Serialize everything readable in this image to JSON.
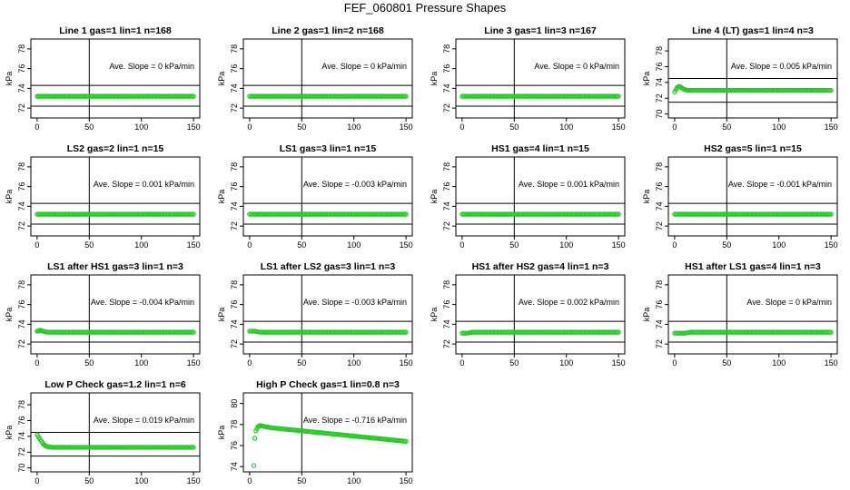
{
  "page": {
    "title": "FEF_060801  Pressure Shapes"
  },
  "style": {
    "point_color": "#22cc22",
    "point_stroke": "#11aa11",
    "axis_color": "#000000"
  },
  "chart_data": [
    {
      "type": "scatter",
      "title": "Line 1 gas=1 lin=1 n=168",
      "ylabel": "kPa",
      "xlim": [
        0,
        150
      ],
      "ylim": [
        71,
        79
      ],
      "x_ticks": [
        0,
        50,
        100,
        150
      ],
      "y_ticks": [
        72,
        74,
        76,
        78
      ],
      "hlines": [
        72.2,
        74.3
      ],
      "vline": 50,
      "slope_text": "Ave. Slope =  0  kPa/min",
      "points": [
        [
          0,
          73.2
        ],
        [
          5,
          73.2
        ],
        [
          10,
          73.2
        ],
        [
          20,
          73.2
        ],
        [
          40,
          73.2
        ],
        [
          60,
          73.2
        ],
        [
          80,
          73.2
        ],
        [
          100,
          73.2
        ],
        [
          120,
          73.2
        ],
        [
          150,
          73.2
        ]
      ]
    },
    {
      "type": "scatter",
      "title": "Line 2 gas=1 lin=2 n=168",
      "ylabel": "kPa",
      "xlim": [
        0,
        150
      ],
      "ylim": [
        71,
        79
      ],
      "x_ticks": [
        0,
        50,
        100,
        150
      ],
      "y_ticks": [
        72,
        74,
        76,
        78
      ],
      "hlines": [
        72.2,
        74.3
      ],
      "vline": 50,
      "slope_text": "Ave. Slope =  0  kPa/min",
      "points": [
        [
          0,
          73.2
        ],
        [
          5,
          73.2
        ],
        [
          10,
          73.2
        ],
        [
          20,
          73.2
        ],
        [
          40,
          73.2
        ],
        [
          60,
          73.2
        ],
        [
          80,
          73.2
        ],
        [
          100,
          73.2
        ],
        [
          120,
          73.2
        ],
        [
          150,
          73.2
        ]
      ]
    },
    {
      "type": "scatter",
      "title": "Line 3 gas=1 lin=3 n=167",
      "ylabel": "kPa",
      "xlim": [
        0,
        150
      ],
      "ylim": [
        71,
        79
      ],
      "x_ticks": [
        0,
        50,
        100,
        150
      ],
      "y_ticks": [
        72,
        74,
        76,
        78
      ],
      "hlines": [
        72.2,
        74.3
      ],
      "vline": 50,
      "slope_text": "Ave. Slope =  0  kPa/min",
      "points": [
        [
          0,
          73.2
        ],
        [
          5,
          73.2
        ],
        [
          10,
          73.2
        ],
        [
          20,
          73.2
        ],
        [
          40,
          73.2
        ],
        [
          60,
          73.2
        ],
        [
          80,
          73.2
        ],
        [
          100,
          73.2
        ],
        [
          120,
          73.2
        ],
        [
          150,
          73.2
        ]
      ]
    },
    {
      "type": "scatter",
      "title": "Line 4 (LT) gas=1 lin=4 n=3",
      "ylabel": "kPa",
      "xlim": [
        0,
        150
      ],
      "ylim": [
        69.5,
        79.5
      ],
      "x_ticks": [
        0,
        50,
        100,
        150
      ],
      "y_ticks": [
        70,
        72,
        74,
        76,
        78
      ],
      "hlines": [
        71.5,
        74.5
      ],
      "vline": 50,
      "slope_text": "Ave. Slope =  0.005  kPa/min",
      "points": [
        [
          0,
          72.8
        ],
        [
          2,
          73.3
        ],
        [
          4,
          73.5
        ],
        [
          6,
          73.4
        ],
        [
          8,
          73.2
        ],
        [
          10,
          73.1
        ],
        [
          12,
          73.0
        ],
        [
          15,
          73.0
        ],
        [
          20,
          73.0
        ],
        [
          40,
          73.0
        ],
        [
          60,
          73.0
        ],
        [
          80,
          73.0
        ],
        [
          100,
          73.0
        ],
        [
          120,
          73.0
        ],
        [
          150,
          73.0
        ]
      ]
    },
    {
      "type": "scatter",
      "title": "LS2 gas=2 lin=1 n=15",
      "ylabel": "kPa",
      "xlim": [
        0,
        150
      ],
      "ylim": [
        71,
        79
      ],
      "x_ticks": [
        0,
        50,
        100,
        150
      ],
      "y_ticks": [
        72,
        74,
        76,
        78
      ],
      "hlines": [
        72.2,
        74.3
      ],
      "vline": 50,
      "slope_text": "Ave. Slope =  0.001  kPa/min",
      "points": [
        [
          0,
          73.2
        ],
        [
          5,
          73.2
        ],
        [
          10,
          73.2
        ],
        [
          20,
          73.2
        ],
        [
          40,
          73.2
        ],
        [
          60,
          73.2
        ],
        [
          80,
          73.2
        ],
        [
          100,
          73.2
        ],
        [
          120,
          73.2
        ],
        [
          150,
          73.2
        ]
      ]
    },
    {
      "type": "scatter",
      "title": "LS1 gas=3 lin=1 n=15",
      "ylabel": "kPa",
      "xlim": [
        0,
        150
      ],
      "ylim": [
        71,
        79
      ],
      "x_ticks": [
        0,
        50,
        100,
        150
      ],
      "y_ticks": [
        72,
        74,
        76,
        78
      ],
      "hlines": [
        72.2,
        74.3
      ],
      "vline": 50,
      "slope_text": "Ave. Slope =  -0.003  kPa/min",
      "points": [
        [
          0,
          73.2
        ],
        [
          5,
          73.2
        ],
        [
          10,
          73.2
        ],
        [
          20,
          73.2
        ],
        [
          40,
          73.2
        ],
        [
          60,
          73.2
        ],
        [
          80,
          73.2
        ],
        [
          100,
          73.2
        ],
        [
          120,
          73.2
        ],
        [
          150,
          73.2
        ]
      ]
    },
    {
      "type": "scatter",
      "title": "HS1 gas=4 lin=1 n=15",
      "ylabel": "kPa",
      "xlim": [
        0,
        150
      ],
      "ylim": [
        71,
        79
      ],
      "x_ticks": [
        0,
        50,
        100,
        150
      ],
      "y_ticks": [
        72,
        74,
        76,
        78
      ],
      "hlines": [
        72.2,
        74.3
      ],
      "vline": 50,
      "slope_text": "Ave. Slope =  0.001  kPa/min",
      "points": [
        [
          0,
          73.2
        ],
        [
          5,
          73.2
        ],
        [
          10,
          73.2
        ],
        [
          20,
          73.2
        ],
        [
          40,
          73.2
        ],
        [
          60,
          73.2
        ],
        [
          80,
          73.2
        ],
        [
          100,
          73.2
        ],
        [
          120,
          73.2
        ],
        [
          150,
          73.2
        ]
      ]
    },
    {
      "type": "scatter",
      "title": "HS2 gas=5 lin=1 n=15",
      "ylabel": "kPa",
      "xlim": [
        0,
        150
      ],
      "ylim": [
        71,
        79
      ],
      "x_ticks": [
        0,
        50,
        100,
        150
      ],
      "y_ticks": [
        72,
        74,
        76,
        78
      ],
      "hlines": [
        72.2,
        74.3
      ],
      "vline": 50,
      "slope_text": "Ave. Slope =  -0.001  kPa/min",
      "points": [
        [
          0,
          73.2
        ],
        [
          5,
          73.2
        ],
        [
          10,
          73.2
        ],
        [
          20,
          73.2
        ],
        [
          40,
          73.2
        ],
        [
          60,
          73.2
        ],
        [
          80,
          73.2
        ],
        [
          100,
          73.2
        ],
        [
          120,
          73.2
        ],
        [
          150,
          73.2
        ]
      ]
    },
    {
      "type": "scatter",
      "title": "LS1 after HS1 gas=3 lin=1 n=3",
      "ylabel": "kPa",
      "xlim": [
        0,
        150
      ],
      "ylim": [
        71,
        79
      ],
      "x_ticks": [
        0,
        50,
        100,
        150
      ],
      "y_ticks": [
        72,
        74,
        76,
        78
      ],
      "hlines": [
        72.2,
        74.3
      ],
      "vline": 50,
      "slope_text": "Ave. Slope =  -0.004  kPa/min",
      "points": [
        [
          0,
          73.3
        ],
        [
          3,
          73.4
        ],
        [
          6,
          73.3
        ],
        [
          10,
          73.2
        ],
        [
          20,
          73.2
        ],
        [
          40,
          73.2
        ],
        [
          60,
          73.2
        ],
        [
          80,
          73.2
        ],
        [
          100,
          73.2
        ],
        [
          120,
          73.2
        ],
        [
          150,
          73.2
        ]
      ]
    },
    {
      "type": "scatter",
      "title": "LS1 after LS2 gas=3 lin=1 n=3",
      "ylabel": "kPa",
      "xlim": [
        0,
        150
      ],
      "ylim": [
        71,
        79
      ],
      "x_ticks": [
        0,
        50,
        100,
        150
      ],
      "y_ticks": [
        72,
        74,
        76,
        78
      ],
      "hlines": [
        72.2,
        74.3
      ],
      "vline": 50,
      "slope_text": "Ave. Slope =  -0.003  kPa/min",
      "points": [
        [
          0,
          73.3
        ],
        [
          5,
          73.3
        ],
        [
          10,
          73.2
        ],
        [
          20,
          73.2
        ],
        [
          40,
          73.2
        ],
        [
          60,
          73.2
        ],
        [
          80,
          73.2
        ],
        [
          100,
          73.2
        ],
        [
          120,
          73.2
        ],
        [
          150,
          73.2
        ]
      ]
    },
    {
      "type": "scatter",
      "title": "HS1 after HS2 gas=4 lin=1 n=3",
      "ylabel": "kPa",
      "xlim": [
        0,
        150
      ],
      "ylim": [
        71,
        79
      ],
      "x_ticks": [
        0,
        50,
        100,
        150
      ],
      "y_ticks": [
        72,
        74,
        76,
        78
      ],
      "hlines": [
        72.2,
        74.3
      ],
      "vline": 50,
      "slope_text": "Ave. Slope =  0.002  kPa/min",
      "points": [
        [
          0,
          73.1
        ],
        [
          5,
          73.1
        ],
        [
          10,
          73.2
        ],
        [
          20,
          73.2
        ],
        [
          40,
          73.2
        ],
        [
          60,
          73.2
        ],
        [
          80,
          73.2
        ],
        [
          100,
          73.2
        ],
        [
          120,
          73.2
        ],
        [
          150,
          73.2
        ]
      ]
    },
    {
      "type": "scatter",
      "title": "HS1 after LS1 gas=4 lin=1 n=3",
      "ylabel": "kPa",
      "xlim": [
        0,
        150
      ],
      "ylim": [
        71,
        79
      ],
      "x_ticks": [
        0,
        50,
        100,
        150
      ],
      "y_ticks": [
        72,
        74,
        76,
        78
      ],
      "hlines": [
        72.2,
        74.3
      ],
      "vline": 50,
      "slope_text": "Ave. Slope =  0  kPa/min",
      "points": [
        [
          0,
          73.1
        ],
        [
          5,
          73.1
        ],
        [
          10,
          73.1
        ],
        [
          15,
          73.2
        ],
        [
          20,
          73.2
        ],
        [
          40,
          73.2
        ],
        [
          60,
          73.2
        ],
        [
          80,
          73.2
        ],
        [
          100,
          73.2
        ],
        [
          120,
          73.2
        ],
        [
          150,
          73.2
        ]
      ]
    },
    {
      "type": "scatter",
      "title": "Low P Check gas=1.2 lin=1 n=6",
      "ylabel": "kPa",
      "xlim": [
        0,
        150
      ],
      "ylim": [
        69.5,
        79.5
      ],
      "x_ticks": [
        0,
        50,
        100,
        150
      ],
      "y_ticks": [
        70,
        72,
        74,
        76,
        78
      ],
      "hlines": [
        71.5,
        74.5
      ],
      "vline": 50,
      "slope_text": "Ave. Slope =  0.019  kPa/min",
      "points": [
        [
          0,
          74.2
        ],
        [
          2,
          73.8
        ],
        [
          4,
          73.4
        ],
        [
          6,
          73.0
        ],
        [
          8,
          72.8
        ],
        [
          10,
          72.7
        ],
        [
          15,
          72.6
        ],
        [
          20,
          72.6
        ],
        [
          40,
          72.6
        ],
        [
          60,
          72.6
        ],
        [
          80,
          72.6
        ],
        [
          100,
          72.6
        ],
        [
          120,
          72.6
        ],
        [
          150,
          72.6
        ]
      ]
    },
    {
      "type": "scatter",
      "title": "High P Check gas=1 lin=0.8 n=3",
      "ylabel": "kPa",
      "xlim": [
        0,
        150
      ],
      "ylim": [
        73.5,
        81
      ],
      "x_ticks": [
        0,
        50,
        100,
        150
      ],
      "y_ticks": [
        74,
        76,
        78,
        80
      ],
      "hlines": [],
      "vline": 50,
      "slope_text": "Ave. Slope =  -0.716  kPa/min",
      "points": [
        [
          4,
          74.1
        ],
        [
          5,
          76.7
        ],
        [
          6,
          77.4
        ],
        [
          8,
          77.8
        ],
        [
          10,
          77.9
        ],
        [
          15,
          77.8
        ],
        [
          20,
          77.7
        ],
        [
          30,
          77.6
        ],
        [
          40,
          77.5
        ],
        [
          50,
          77.4
        ],
        [
          60,
          77.3
        ],
        [
          70,
          77.2
        ],
        [
          80,
          77.1
        ],
        [
          90,
          77.0
        ],
        [
          100,
          76.9
        ],
        [
          110,
          76.8
        ],
        [
          120,
          76.7
        ],
        [
          130,
          76.6
        ],
        [
          140,
          76.5
        ],
        [
          150,
          76.4
        ]
      ]
    }
  ]
}
